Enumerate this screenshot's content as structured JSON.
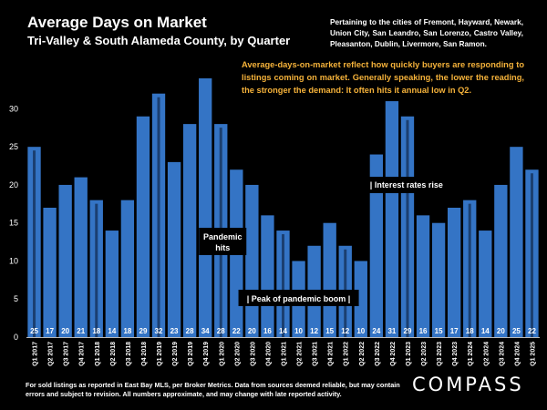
{
  "header": {
    "title": "Average Days on Market",
    "subtitle": "Tri-Valley & South Alameda County, by Quarter",
    "cities": "Pertaining to the cities of Fremont, Hayward, Newark, Union City, San Leandro, San Lorenzo, Castro Valley, Pleasanton, Dublin, Livermore, San Ramon.",
    "note": "Average-days-on-market reflect how quickly buyers are responding to listings coming on market. Generally speaking, the lower the reading, the stronger the demand: It often hits it annual low in Q2."
  },
  "footer": {
    "disclaimer": "For sold listings as reported in East Bay MLS, per Broker Metrics. Data from sources deemed reliable, but may contain errors and subject to revision. All numbers approximate, and may change with late reported activity.",
    "logo": "COMPASS"
  },
  "colors": {
    "bar": "#3474c5",
    "q1_stripe": "#1b3f70",
    "note": "#f5b23a",
    "background": "#000000"
  },
  "chart_data": {
    "type": "bar",
    "categories": [
      "Q1 2017",
      "Q2 2017",
      "Q3 2017",
      "Q4 2017",
      "Q1 2018",
      "Q2 2018",
      "Q3 2018",
      "Q4 2018",
      "Q1 2019",
      "Q2 2019",
      "Q3 2019",
      "Q4 2019",
      "Q1 2020",
      "Q2 2020",
      "Q3 2020",
      "Q4 2020",
      "Q1 2021",
      "Q2 2021",
      "Q3 2021",
      "Q4 2021",
      "Q1 2022",
      "Q2 2022",
      "Q3 2022",
      "Q4 2022",
      "Q1 2023",
      "Q2 2023",
      "Q3 2023",
      "Q4 2023",
      "Q1 2024",
      "Q2 2024",
      "Q3 2024",
      "Q4 2024",
      "Q1 2025"
    ],
    "values": [
      25,
      17,
      20,
      21,
      18,
      14,
      18,
      29,
      32,
      23,
      28,
      34,
      28,
      22,
      20,
      16,
      14,
      10,
      12,
      15,
      12,
      10,
      24,
      31,
      29,
      16,
      15,
      17,
      18,
      14,
      20,
      25,
      22
    ],
    "yticks": [
      0,
      5,
      10,
      15,
      20,
      25,
      30
    ],
    "ylim": [
      0,
      34
    ],
    "annotations": [
      {
        "text": "Pandemic hits",
        "category": "Q1 2020"
      },
      {
        "text": "| Peak of pandemic boom |",
        "category": "Q2 2021"
      },
      {
        "text": "| Interest rates rise",
        "category": "Q2 2022"
      }
    ]
  }
}
